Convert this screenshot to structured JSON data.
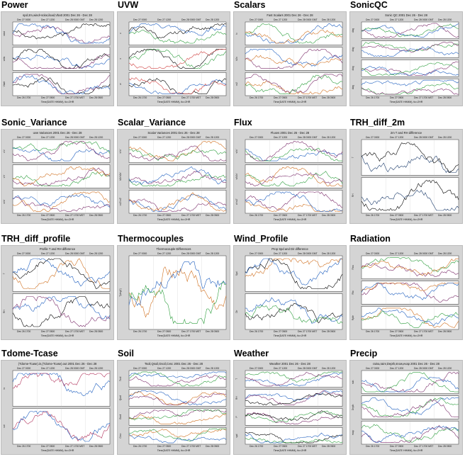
{
  "page": {
    "panels": [
      {
        "title": "Power",
        "plot_title": "spd.2m,wind+solar,iload,Vbatt 2001 Dec 26 - Dec 28",
        "nsub": 3,
        "colors": [
          "#7b2d6b",
          "#1f5fbf",
          "#000000"
        ],
        "ylabels": [
          "wind",
          "volts",
          "Vbatt"
        ]
      },
      {
        "title": "UVW",
        "plot_title": "",
        "nsub": 3,
        "colors": [
          "#1f5fbf",
          "#2e9e3e",
          "#000000",
          "#d04040"
        ],
        "ylabels": [
          "u",
          "v",
          "w"
        ]
      },
      {
        "title": "Scalars",
        "plot_title": "Fast Scalars 2001 Dec 26 - Dec 28",
        "nsub": 3,
        "colors": [
          "#2e9e3e",
          "#1f5fbf",
          "#d07020",
          "#7b2d6b"
        ],
        "ylabels": [
          "tc",
          "h2o",
          "co2"
        ]
      },
      {
        "title": "SonicQC",
        "plot_title": "Sonic QC 2001 Dec 26 - Dec 28",
        "nsub": 4,
        "colors": [
          "#1f5fbf",
          "#2e9e3e",
          "#7b2d6b"
        ],
        "ylabels": [
          "diag",
          "diag",
          "diag",
          "diag"
        ]
      },
      {
        "title": "Sonic_Variance",
        "plot_title": "uvw Variances 2001 Dec 26 - Dec 28",
        "nsub": 3,
        "colors": [
          "#1f5fbf",
          "#2e9e3e",
          "#7b2d6b",
          "#d07020"
        ],
        "ylabels": [
          "u'u'",
          "v'v'",
          "w'w'"
        ]
      },
      {
        "title": "Scalar_Variance",
        "plot_title": "Scalar Variances 2001 Dec 26 - Dec 28",
        "nsub": 3,
        "colors": [
          "#d07020",
          "#2e9e3e",
          "#7b2d6b",
          "#1f5fbf"
        ],
        "ylabels": [
          "tc'tc'",
          "h2o'h2o'",
          "co2'co2'"
        ]
      },
      {
        "title": "Flux",
        "plot_title": "Fluxes 2001 Dec 26 - Dec 28",
        "nsub": 3,
        "colors": [
          "#1f5fbf",
          "#2e9e3e",
          "#7b2d6b",
          "#d07020"
        ],
        "ylabels": [
          "w'tc'",
          "w'h2o'",
          "w'co2'"
        ]
      },
      {
        "title": "TRH_diff_2m",
        "plot_title": "2m T and RH difference",
        "nsub": 2,
        "colors": [
          "#1a3a6a",
          "#000000"
        ],
        "ylabels": [
          "T",
          "RH"
        ]
      },
      {
        "title": "TRH_diff_profile",
        "plot_title": "Profile T and RH difference",
        "nsub": 2,
        "colors": [
          "#d07020",
          "#000000",
          "#1f5fbf",
          "#7b2d6b"
        ],
        "ylabels": [
          "T",
          "RH"
        ]
      },
      {
        "title": "Thermocouples",
        "plot_title": "Thermocouple Differences",
        "nsub": 1,
        "colors": [
          "#d07020",
          "#1f5fbf",
          "#2e9e3e",
          "#000000"
        ],
        "ylabels": [
          "T(degC)"
        ]
      },
      {
        "title": "Wind_Profile",
        "plot_title": "Prop Spd and Dir difference",
        "nsub": 2,
        "colors": [
          "#d07020",
          "#000000",
          "#1f5fbf",
          "#2e9e3e"
        ],
        "ylabels": [
          "Spd",
          "Dir"
        ]
      },
      {
        "title": "Radiation",
        "plot_title": "",
        "nsub": 3,
        "colors": [
          "#2e9e3e",
          "#7b2d6b",
          "#d07020",
          "#1f5fbf"
        ],
        "ylabels": [
          "Rsw",
          "Rlw",
          "Rpile"
        ]
      },
      {
        "title": "Tdome-Tcase",
        "plot_title": "(Tdome-Tcase).in,(Tdome-Tcase).out 2001 Dec 26 - Dec 28",
        "nsub": 2,
        "colors": [
          "#1f5fbf",
          "#b0305a"
        ],
        "ylabels": [
          "in",
          "out"
        ]
      },
      {
        "title": "Soil",
        "plot_title": "Tsoil,Qsoil,Gsoil,Cvsc 2001 Dec 26 - Dec 28",
        "nsub": 4,
        "colors": [
          "#2e9e3e",
          "#1f5fbf",
          "#7b2d6b",
          "#d07020"
        ],
        "ylabels": [
          "Tsoil",
          "Qsoil",
          "Gsoil",
          "Cvsc"
        ]
      },
      {
        "title": "Weather",
        "plot_title": "Weather 2001 Dec 26 - Dec 28",
        "nsub": 4,
        "colors": [
          "#2e9e3e",
          "#1f5fbf",
          "#7b2d6b",
          "#000000"
        ],
        "ylabels": [
          "T",
          "RH",
          "P",
          "spd"
        ]
      },
      {
        "title": "Precip",
        "plot_title": "raina,rainr,Depth,snow,evap 2001 Dec 26 - Dec 28",
        "nsub": 3,
        "colors": [
          "#7b2d6b",
          "#1f5fbf",
          "#2e9e3e"
        ],
        "ylabels": [
          "rain",
          "Depth",
          "evap"
        ]
      }
    ],
    "time_label": "Time(DATE HHMM), tic=2HR"
  },
  "chart_data": {
    "type": "line",
    "x_ticks_top": [
      "Dec 27 0000",
      "Dec 27 1200",
      "Dec 28 0000 GMT",
      "Dec 28 1200"
    ],
    "x_ticks_bottom": [
      "Dec 26 1700",
      "Dec 27 0500",
      "Dec 27 1700 MST",
      "Dec 28 0500"
    ],
    "x_range": [
      "2001 Dec 26",
      "2001 Dec 28"
    ]
  }
}
